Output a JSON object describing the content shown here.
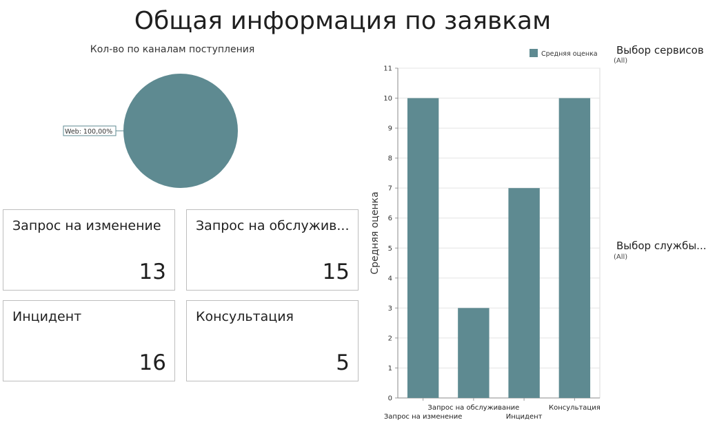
{
  "header": {
    "title": "Общая информация по заявкам"
  },
  "pie_chart": {
    "title": "Кол-во по каналам поступления",
    "slices": [
      {
        "label": "Web: 100,00%",
        "value": 100,
        "color": "#5e8a91"
      }
    ]
  },
  "cards": [
    {
      "label": "Запрос на изменение",
      "value": "13"
    },
    {
      "label": "Запрос на обслужив...",
      "value": "15"
    },
    {
      "label": "Инцидент",
      "value": "16"
    },
    {
      "label": "Консультация",
      "value": "5"
    }
  ],
  "filters": [
    {
      "title": "Выбор сервисов",
      "value": "(All)"
    },
    {
      "title": "Выбор службы...",
      "value": "(All)"
    }
  ],
  "chart_data": {
    "type": "bar",
    "categories": [
      "Запрос на изменение",
      "Запрос на обслуживание",
      "Инцидент",
      "Консультация"
    ],
    "series": [
      {
        "name": "Средняя оценка",
        "values": [
          10,
          3,
          7,
          10
        ],
        "color": "#5e8a91"
      }
    ],
    "ylabel": "Средняя оценка",
    "xlabel": "",
    "ylim": [
      0,
      11
    ],
    "yticks": [
      0,
      1,
      2,
      3,
      4,
      5,
      6,
      7,
      8,
      9,
      10,
      11
    ],
    "grid": true,
    "legend": "top-right"
  }
}
